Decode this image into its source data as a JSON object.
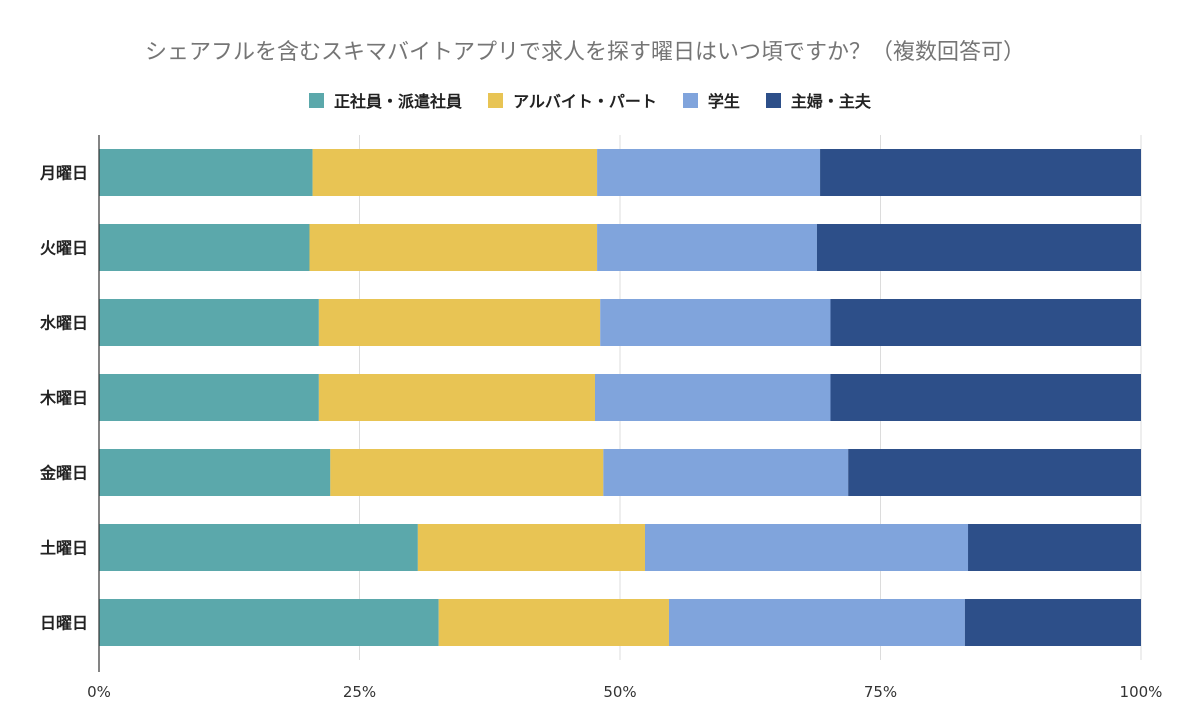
{
  "chart_data": {
    "type": "bar",
    "orientation": "horizontal",
    "stacked": "percent",
    "title": "シェアフルを含むスキマバイトアプリで求人を探す曜日はいつ頃ですか？（複数回答可）",
    "categories": [
      "月曜日",
      "火曜日",
      "水曜日",
      "木曜日",
      "金曜日",
      "土曜日",
      "日曜日"
    ],
    "series": [
      {
        "name": "正社員・派遣社員",
        "color": "#5ba8ab",
        "values": [
          20.5,
          20.2,
          21.1,
          21.1,
          22.2,
          30.6,
          32.6
        ]
      },
      {
        "name": "アルバイト・パート",
        "color": "#e8c454",
        "values": [
          27.3,
          27.6,
          27.0,
          26.5,
          26.2,
          21.8,
          22.1
        ]
      },
      {
        "name": "学生",
        "color": "#80a4dc",
        "values": [
          21.4,
          21.1,
          22.1,
          22.6,
          23.5,
          31.0,
          28.4
        ]
      },
      {
        "name": "主婦・主夫",
        "color": "#2d4f89",
        "values": [
          30.8,
          31.1,
          29.8,
          29.8,
          28.1,
          16.6,
          16.9
        ]
      }
    ],
    "xlim": [
      0,
      100
    ],
    "xticks": [
      "0%",
      "25%",
      "50%",
      "75%",
      "100%"
    ],
    "grid": true,
    "legend": "top"
  }
}
